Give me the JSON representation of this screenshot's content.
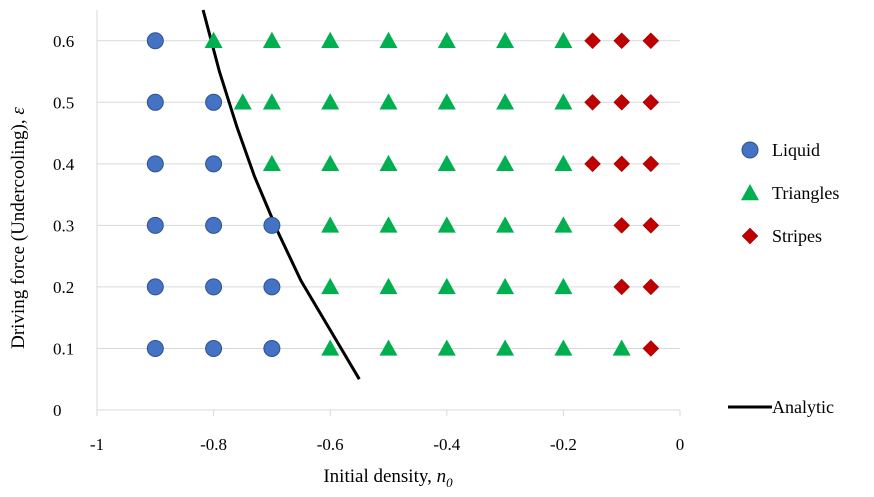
{
  "chart_data": {
    "type": "scatter",
    "xlabel": "Initial density, ",
    "xlabel_var": "n",
    "xlabel_sub": "0",
    "ylabel": "Driving force (Undercooling), ",
    "ylabel_var": "ε",
    "xlim": [
      -1,
      0
    ],
    "ylim": [
      0,
      0.65
    ],
    "x_ticks": [
      -1,
      -0.8,
      -0.6,
      -0.4,
      -0.2,
      0
    ],
    "x_tick_labels": [
      "-1",
      "-0.8",
      "-0.6",
      "-0.4",
      "-0.2",
      "0"
    ],
    "y_ticks": [
      0,
      0.1,
      0.2,
      0.3,
      0.4,
      0.5,
      0.6
    ],
    "y_tick_labels": [
      "0",
      "0.1",
      "0.2",
      "0.3",
      "0.4",
      "0.5",
      "0.6"
    ],
    "grid": "horizontal",
    "legend_position": "right",
    "series": [
      {
        "name": "Liquid",
        "marker": "circle",
        "color": "#4472c4",
        "points": [
          [
            -0.9,
            0.6
          ],
          [
            -0.9,
            0.5
          ],
          [
            -0.8,
            0.5
          ],
          [
            -0.9,
            0.4
          ],
          [
            -0.8,
            0.4
          ],
          [
            -0.9,
            0.3
          ],
          [
            -0.8,
            0.3
          ],
          [
            -0.7,
            0.3
          ],
          [
            -0.9,
            0.2
          ],
          [
            -0.8,
            0.2
          ],
          [
            -0.7,
            0.2
          ],
          [
            -0.9,
            0.1
          ],
          [
            -0.8,
            0.1
          ],
          [
            -0.7,
            0.1
          ]
        ]
      },
      {
        "name": "Triangles",
        "marker": "triangle",
        "color": "#00b050",
        "points": [
          [
            -0.8,
            0.6
          ],
          [
            -0.7,
            0.6
          ],
          [
            -0.6,
            0.6
          ],
          [
            -0.5,
            0.6
          ],
          [
            -0.4,
            0.6
          ],
          [
            -0.3,
            0.6
          ],
          [
            -0.2,
            0.6
          ],
          [
            -0.75,
            0.5
          ],
          [
            -0.7,
            0.5
          ],
          [
            -0.6,
            0.5
          ],
          [
            -0.5,
            0.5
          ],
          [
            -0.4,
            0.5
          ],
          [
            -0.3,
            0.5
          ],
          [
            -0.2,
            0.5
          ],
          [
            -0.7,
            0.4
          ],
          [
            -0.6,
            0.4
          ],
          [
            -0.5,
            0.4
          ],
          [
            -0.4,
            0.4
          ],
          [
            -0.3,
            0.4
          ],
          [
            -0.2,
            0.4
          ],
          [
            -0.6,
            0.3
          ],
          [
            -0.5,
            0.3
          ],
          [
            -0.4,
            0.3
          ],
          [
            -0.3,
            0.3
          ],
          [
            -0.2,
            0.3
          ],
          [
            -0.6,
            0.2
          ],
          [
            -0.5,
            0.2
          ],
          [
            -0.4,
            0.2
          ],
          [
            -0.3,
            0.2
          ],
          [
            -0.2,
            0.2
          ],
          [
            -0.6,
            0.1
          ],
          [
            -0.5,
            0.1
          ],
          [
            -0.4,
            0.1
          ],
          [
            -0.3,
            0.1
          ],
          [
            -0.2,
            0.1
          ],
          [
            -0.1,
            0.1
          ]
        ]
      },
      {
        "name": "Stripes",
        "marker": "diamond",
        "color": "#c00000",
        "points": [
          [
            -0.15,
            0.6
          ],
          [
            -0.1,
            0.6
          ],
          [
            -0.05,
            0.6
          ],
          [
            -0.15,
            0.5
          ],
          [
            -0.1,
            0.5
          ],
          [
            -0.05,
            0.5
          ],
          [
            -0.15,
            0.4
          ],
          [
            -0.1,
            0.4
          ],
          [
            -0.05,
            0.4
          ],
          [
            -0.1,
            0.3
          ],
          [
            -0.05,
            0.3
          ],
          [
            -0.1,
            0.2
          ],
          [
            -0.05,
            0.2
          ],
          [
            -0.05,
            0.1
          ]
        ]
      },
      {
        "name": "Analytic",
        "marker": "line",
        "color": "#000000",
        "points": [
          [
            -0.818,
            0.65
          ],
          [
            -0.79,
            0.55
          ],
          [
            -0.76,
            0.46
          ],
          [
            -0.73,
            0.38
          ],
          [
            -0.69,
            0.29
          ],
          [
            -0.65,
            0.21
          ],
          [
            -0.6,
            0.13
          ],
          [
            -0.55,
            0.05
          ]
        ]
      }
    ]
  }
}
